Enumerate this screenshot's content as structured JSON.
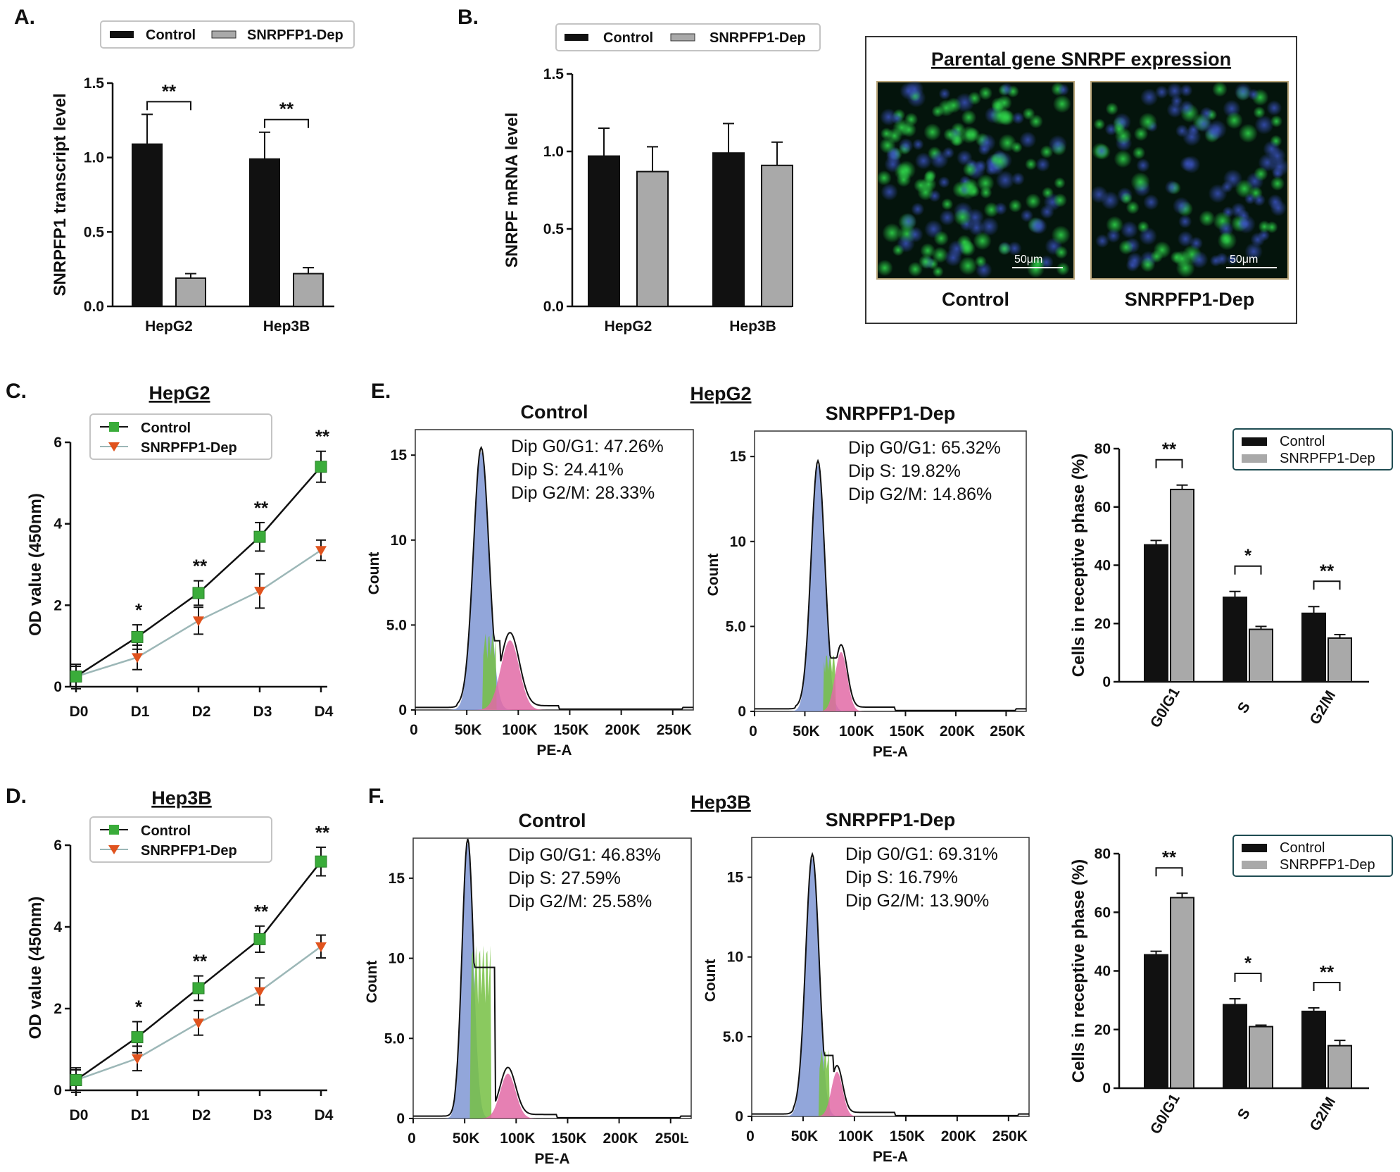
{
  "panels": {
    "a": "A.",
    "b": "B.",
    "c": "C.",
    "d": "D.",
    "e": "E.",
    "f": "F."
  },
  "colors": {
    "control": "#111111",
    "dep": "#a9a9a9",
    "green": "#3aac3a",
    "orange": "#e0531e",
    "ctrl_line": "#111111",
    "dep_line": "#9cb7b7",
    "blue": "#7f96d4",
    "g2": "#e26aa6",
    "s": "#76c043"
  },
  "chart_data": [
    {
      "id": "A",
      "type": "bar",
      "ylabel": "SNRPFP1 transcript level",
      "categories": [
        "HepG2",
        "Hep3B"
      ],
      "series": [
        {
          "name": "Control",
          "values": [
            1.09,
            0.99
          ],
          "errors": [
            0.2,
            0.18
          ]
        },
        {
          "name": "SNRPFP1-Dep",
          "values": [
            0.19,
            0.22
          ],
          "errors": [
            0.03,
            0.04
          ]
        }
      ],
      "ylim": [
        0,
        1.5
      ],
      "yticks": [
        "0.0",
        "0.5",
        "1.0",
        "1.5"
      ],
      "annotations": [
        "**",
        "**"
      ],
      "legend": "top"
    },
    {
      "id": "B",
      "type": "bar",
      "ylabel": "SNRPF mRNA level",
      "categories": [
        "HepG2",
        "Hep3B"
      ],
      "series": [
        {
          "name": "Control",
          "values": [
            0.97,
            0.99
          ],
          "errors": [
            0.18,
            0.19
          ]
        },
        {
          "name": "SNRPFP1-Dep",
          "values": [
            0.87,
            0.91
          ],
          "errors": [
            0.16,
            0.15
          ]
        }
      ],
      "ylim": [
        0,
        1.5
      ],
      "yticks": [
        "0.0",
        "0.5",
        "1.0",
        "1.5"
      ],
      "legend": "top"
    },
    {
      "id": "C",
      "type": "line",
      "title": "HepG2",
      "ylabel": "OD value (450nm)",
      "x": [
        "D0",
        "D1",
        "D2",
        "D3",
        "D4"
      ],
      "series": [
        {
          "name": "Control",
          "values": [
            0.25,
            1.22,
            2.3,
            3.68,
            5.4
          ],
          "errors": [
            0.3,
            0.3,
            0.3,
            0.35,
            0.38
          ]
        },
        {
          "name": "SNRPFP1-Dep",
          "values": [
            0.25,
            0.72,
            1.62,
            2.35,
            3.35
          ],
          "errors": [
            0.25,
            0.3,
            0.33,
            0.42,
            0.25
          ]
        }
      ],
      "ylim": [
        0,
        6
      ],
      "yticks": [
        "0",
        "2",
        "4",
        "6"
      ],
      "annotations": [
        "",
        "*",
        "**",
        "**",
        "**"
      ],
      "legend": "top-left"
    },
    {
      "id": "D",
      "type": "line",
      "title": "Hep3B",
      "ylabel": "OD value (450nm)",
      "x": [
        "D0",
        "D1",
        "D2",
        "D3",
        "D4"
      ],
      "series": [
        {
          "name": "Control",
          "values": [
            0.25,
            1.3,
            2.5,
            3.7,
            5.6
          ],
          "errors": [
            0.3,
            0.38,
            0.3,
            0.32,
            0.35
          ]
        },
        {
          "name": "SNRPFP1-Dep",
          "values": [
            0.25,
            0.78,
            1.65,
            2.42,
            3.52
          ],
          "errors": [
            0.25,
            0.3,
            0.3,
            0.33,
            0.28
          ]
        }
      ],
      "ylim": [
        0,
        6
      ],
      "yticks": [
        "0",
        "2",
        "4",
        "6"
      ],
      "annotations": [
        "",
        "*",
        "**",
        "**",
        "**"
      ],
      "legend": "top-left"
    },
    {
      "id": "E1",
      "type": "area",
      "title": "Control",
      "xlabel": "PE-A",
      "ylabel": "Count",
      "xticks": [
        "0",
        "50K",
        "100K",
        "150K",
        "200K",
        "250K"
      ],
      "yticks": [
        "0",
        "5.0",
        "10",
        "15"
      ],
      "xlim": [
        0,
        270
      ],
      "ylim": [
        0,
        16.5
      ],
      "stats": [
        "Dip G0/G1: 47.26%",
        "Dip S: 24.41%",
        "Dip G2/M: 28.33%"
      ],
      "peaks": {
        "g1": {
          "mu": 64,
          "sigma": 7.5,
          "height": 15.2
        },
        "s": {
          "from": 66,
          "to": 78,
          "height": 4.5
        },
        "g2": {
          "mu": 92,
          "sigma": 9,
          "height": 4.1
        }
      }
    },
    {
      "id": "E2",
      "type": "area",
      "title": "SNRPFP1-Dep",
      "xlabel": "PE-A",
      "ylabel": "Count",
      "xticks": [
        "0",
        "50K",
        "100K",
        "150K",
        "200K",
        "250K"
      ],
      "yticks": [
        "0",
        "5.0",
        "10",
        "15"
      ],
      "xlim": [
        0,
        270
      ],
      "ylim": [
        0,
        16.5
      ],
      "stats": [
        "Dip G0/G1: 65.32%",
        "Dip S: 19.82%",
        "Dip G2/M: 14.86%"
      ],
      "peaks": {
        "g1": {
          "mu": 63,
          "sigma": 6.8,
          "height": 14.5
        },
        "s": {
          "from": 69,
          "to": 80,
          "height": 3.4
        },
        "g2": {
          "mu": 86,
          "sigma": 6,
          "height": 3.5
        }
      }
    },
    {
      "id": "E3",
      "type": "bar",
      "ylabel": "Cells in receptive phase (%)",
      "categories": [
        "G0/G1",
        "S",
        "G2/M"
      ],
      "series": [
        {
          "name": "Control",
          "values": [
            47,
            29,
            23.5
          ],
          "errors": [
            1.5,
            2,
            2.3
          ]
        },
        {
          "name": "SNRPFP1-Dep",
          "values": [
            66,
            18,
            15
          ],
          "errors": [
            1.5,
            1,
            1.2
          ]
        }
      ],
      "ylim": [
        0,
        80
      ],
      "yticks": [
        "0",
        "20",
        "40",
        "60",
        "80"
      ],
      "annotations": [
        "**",
        "*",
        "**"
      ],
      "legend": "top-right"
    },
    {
      "id": "F1",
      "type": "area",
      "title": "Control",
      "xlabel": "PE-A",
      "ylabel": "Count",
      "xticks": [
        "0",
        "50K",
        "100K",
        "150K",
        "200K",
        "250Ŀ"
      ],
      "yticks": [
        "0",
        "5.0",
        "10",
        "15"
      ],
      "xlim": [
        0,
        270
      ],
      "ylim": [
        0,
        17.5
      ],
      "stats": [
        "Dip G0/G1: 46.83%",
        "Dip S: 27.59%",
        "Dip G2/M: 25.58%"
      ],
      "peaks": {
        "g1": {
          "mu": 53,
          "sigma": 5.5,
          "height": 17.2
        },
        "s": {
          "from": 56,
          "to": 75,
          "height": 10.8
        },
        "g2": {
          "mu": 92,
          "sigma": 7.5,
          "height": 2.8
        }
      }
    },
    {
      "id": "F2",
      "type": "area",
      "title": "SNRPFP1-Dep",
      "xlabel": "PE-A",
      "ylabel": "Count",
      "xticks": [
        "0",
        "50K",
        "100K",
        "150K",
        "200K",
        "250K"
      ],
      "yticks": [
        "0",
        "5.0",
        "10",
        "15"
      ],
      "xlim": [
        0,
        270
      ],
      "ylim": [
        0,
        17.5
      ],
      "stats": [
        "Dip G0/G1: 69.31%",
        "Dip S: 16.79%",
        "Dip G2/M: 13.90%"
      ],
      "peaks": {
        "g1": {
          "mu": 59,
          "sigma": 6.5,
          "height": 16.2
        },
        "s": {
          "from": 66,
          "to": 75,
          "height": 4.2
        },
        "g2": {
          "mu": 83,
          "sigma": 5.5,
          "height": 2.8
        }
      }
    },
    {
      "id": "F3",
      "type": "bar",
      "ylabel": "Cells in receptive phase (%)",
      "categories": [
        "G0/G1",
        "S",
        "G2/M"
      ],
      "series": [
        {
          "name": "Control",
          "values": [
            45.5,
            28.5,
            26.2
          ],
          "errors": [
            1.2,
            2,
            1.2
          ]
        },
        {
          "name": "SNRPFP1-Dep",
          "values": [
            65,
            21,
            14.5
          ],
          "errors": [
            1.5,
            0.5,
            1.8
          ]
        }
      ],
      "ylim": [
        0,
        80
      ],
      "yticks": [
        "0",
        "20",
        "40",
        "60",
        "80"
      ],
      "annotations": [
        "**",
        "*",
        "**"
      ],
      "legend": "top-right"
    }
  ],
  "titles": {
    "e": "HepG2",
    "f": "Hep3B"
  },
  "micrograph": {
    "title": "Parental gene SNRPF expression",
    "left": "Control",
    "right": "SNRPFP1-Dep",
    "scale_left": "50μm",
    "scale_right": "50μm"
  },
  "legend": {
    "control": "Control",
    "dep": "SNRPFP1-Dep"
  }
}
